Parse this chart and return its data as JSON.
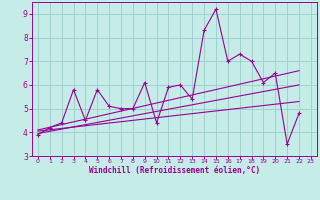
{
  "xlabel": "Windchill (Refroidissement éolien,°C)",
  "xlim": [
    -0.5,
    23.5
  ],
  "ylim": [
    3,
    9.5
  ],
  "xticks": [
    0,
    1,
    2,
    3,
    4,
    5,
    6,
    7,
    8,
    9,
    10,
    11,
    12,
    13,
    14,
    15,
    16,
    17,
    18,
    19,
    20,
    21,
    22,
    23
  ],
  "yticks": [
    3,
    4,
    5,
    6,
    7,
    8,
    9
  ],
  "bg_color": "#c5ece6",
  "line_color": "#990099",
  "grid_color": "#99cccc",
  "main_data_x": [
    0,
    1,
    2,
    3,
    4,
    5,
    6,
    7,
    8,
    9,
    10,
    11,
    12,
    13,
    14,
    15,
    16,
    17,
    18,
    19,
    20,
    21,
    22
  ],
  "main_data_y": [
    3.9,
    4.2,
    4.4,
    5.8,
    4.5,
    5.8,
    5.1,
    5.0,
    5.0,
    6.1,
    4.4,
    5.9,
    6.0,
    5.4,
    8.3,
    9.2,
    7.0,
    7.3,
    7.0,
    6.1,
    6.5,
    3.5,
    4.8
  ],
  "reg_lines": [
    {
      "x": [
        0,
        22
      ],
      "y": [
        3.95,
        6.0
      ]
    },
    {
      "x": [
        0,
        22
      ],
      "y": [
        4.05,
        5.3
      ]
    },
    {
      "x": [
        0,
        22
      ],
      "y": [
        4.1,
        6.6
      ]
    }
  ]
}
